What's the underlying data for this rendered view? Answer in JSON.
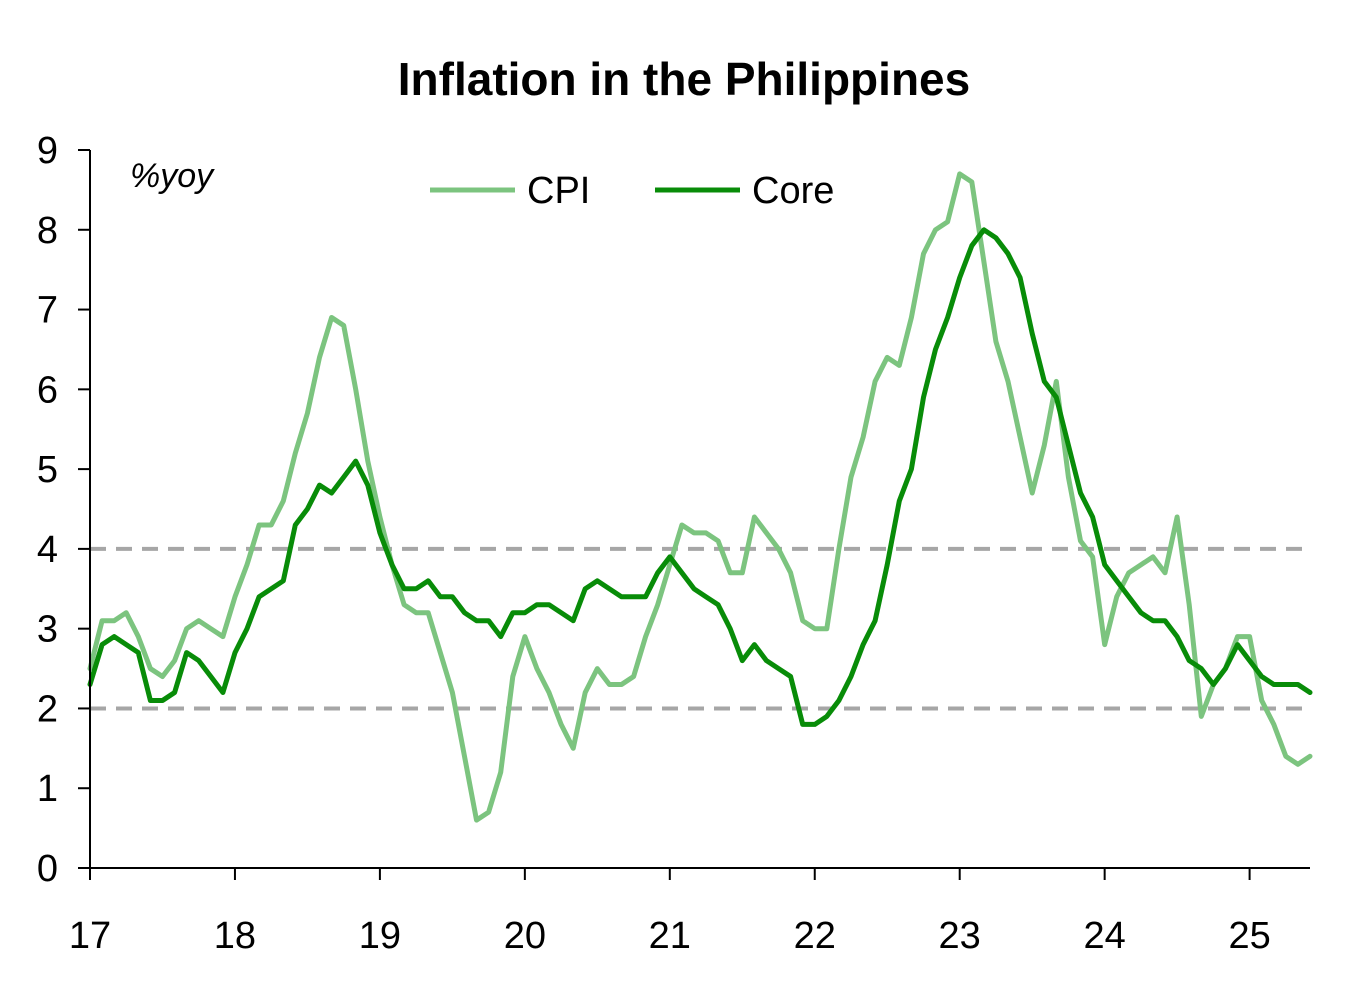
{
  "chart_data": {
    "type": "line",
    "title": "Inflation in the Philippines",
    "unit_label": "%yoy",
    "xlabel": "",
    "ylabel": "",
    "x_ticks": [
      "17",
      "18",
      "19",
      "20",
      "21",
      "22",
      "23",
      "24",
      "25"
    ],
    "y_ticks": [
      "0",
      "1",
      "2",
      "3",
      "4",
      "5",
      "6",
      "7",
      "8",
      "9"
    ],
    "ylim": [
      0,
      9
    ],
    "x_start": "2017-01",
    "x_end": "2025-06",
    "grid": false,
    "legend_position": "top",
    "reference_lines": [
      {
        "value": 2,
        "color": "#a6a6a6",
        "style": "dashed"
      },
      {
        "value": 4,
        "color": "#a6a6a6",
        "style": "dashed"
      }
    ],
    "series": [
      {
        "name": "CPI",
        "color": "#7cc47f",
        "values": [
          2.5,
          3.1,
          3.1,
          3.2,
          2.9,
          2.5,
          2.4,
          2.6,
          3.0,
          3.1,
          3.0,
          2.9,
          3.4,
          3.8,
          4.3,
          4.3,
          4.6,
          5.2,
          5.7,
          6.4,
          6.9,
          6.8,
          6.0,
          5.1,
          4.4,
          3.8,
          3.3,
          3.2,
          3.2,
          2.7,
          2.2,
          1.4,
          0.6,
          0.7,
          1.2,
          2.4,
          2.9,
          2.5,
          2.2,
          1.8,
          1.5,
          2.2,
          2.5,
          2.3,
          2.3,
          2.4,
          2.9,
          3.3,
          3.8,
          4.3,
          4.2,
          4.2,
          4.1,
          3.7,
          3.7,
          4.4,
          4.2,
          4.0,
          3.7,
          3.1,
          3.0,
          3.0,
          4.0,
          4.9,
          5.4,
          6.1,
          6.4,
          6.3,
          6.9,
          7.7,
          8.0,
          8.1,
          8.7,
          8.6,
          7.6,
          6.6,
          6.1,
          5.4,
          4.7,
          5.3,
          6.1,
          4.9,
          4.1,
          3.9,
          2.8,
          3.4,
          3.7,
          3.8,
          3.9,
          3.7,
          4.4,
          3.3,
          1.9,
          2.3,
          2.5,
          2.9,
          2.9,
          2.1,
          1.8,
          1.4,
          1.3,
          1.4
        ]
      },
      {
        "name": "Core",
        "color": "#088c08",
        "values": [
          2.3,
          2.8,
          2.9,
          2.8,
          2.7,
          2.1,
          2.1,
          2.2,
          2.7,
          2.6,
          2.4,
          2.2,
          2.7,
          3.0,
          3.4,
          3.5,
          3.6,
          4.3,
          4.5,
          4.8,
          4.7,
          4.9,
          5.1,
          4.8,
          4.2,
          3.8,
          3.5,
          3.5,
          3.6,
          3.4,
          3.4,
          3.2,
          3.1,
          3.1,
          2.9,
          3.2,
          3.2,
          3.3,
          3.3,
          3.2,
          3.1,
          3.5,
          3.6,
          3.5,
          3.4,
          3.4,
          3.4,
          3.7,
          3.9,
          3.7,
          3.5,
          3.4,
          3.3,
          3.0,
          2.6,
          2.8,
          2.6,
          2.5,
          2.4,
          1.8,
          1.8,
          1.9,
          2.1,
          2.4,
          2.8,
          3.1,
          3.8,
          4.6,
          5.0,
          5.9,
          6.5,
          6.9,
          7.4,
          7.8,
          8.0,
          7.9,
          7.7,
          7.4,
          6.7,
          6.1,
          5.9,
          5.3,
          4.7,
          4.4,
          3.8,
          3.6,
          3.4,
          3.2,
          3.1,
          3.1,
          2.9,
          2.6,
          2.5,
          2.3,
          2.5,
          2.8,
          2.6,
          2.4,
          2.3,
          2.3,
          2.3,
          2.2
        ]
      }
    ]
  }
}
